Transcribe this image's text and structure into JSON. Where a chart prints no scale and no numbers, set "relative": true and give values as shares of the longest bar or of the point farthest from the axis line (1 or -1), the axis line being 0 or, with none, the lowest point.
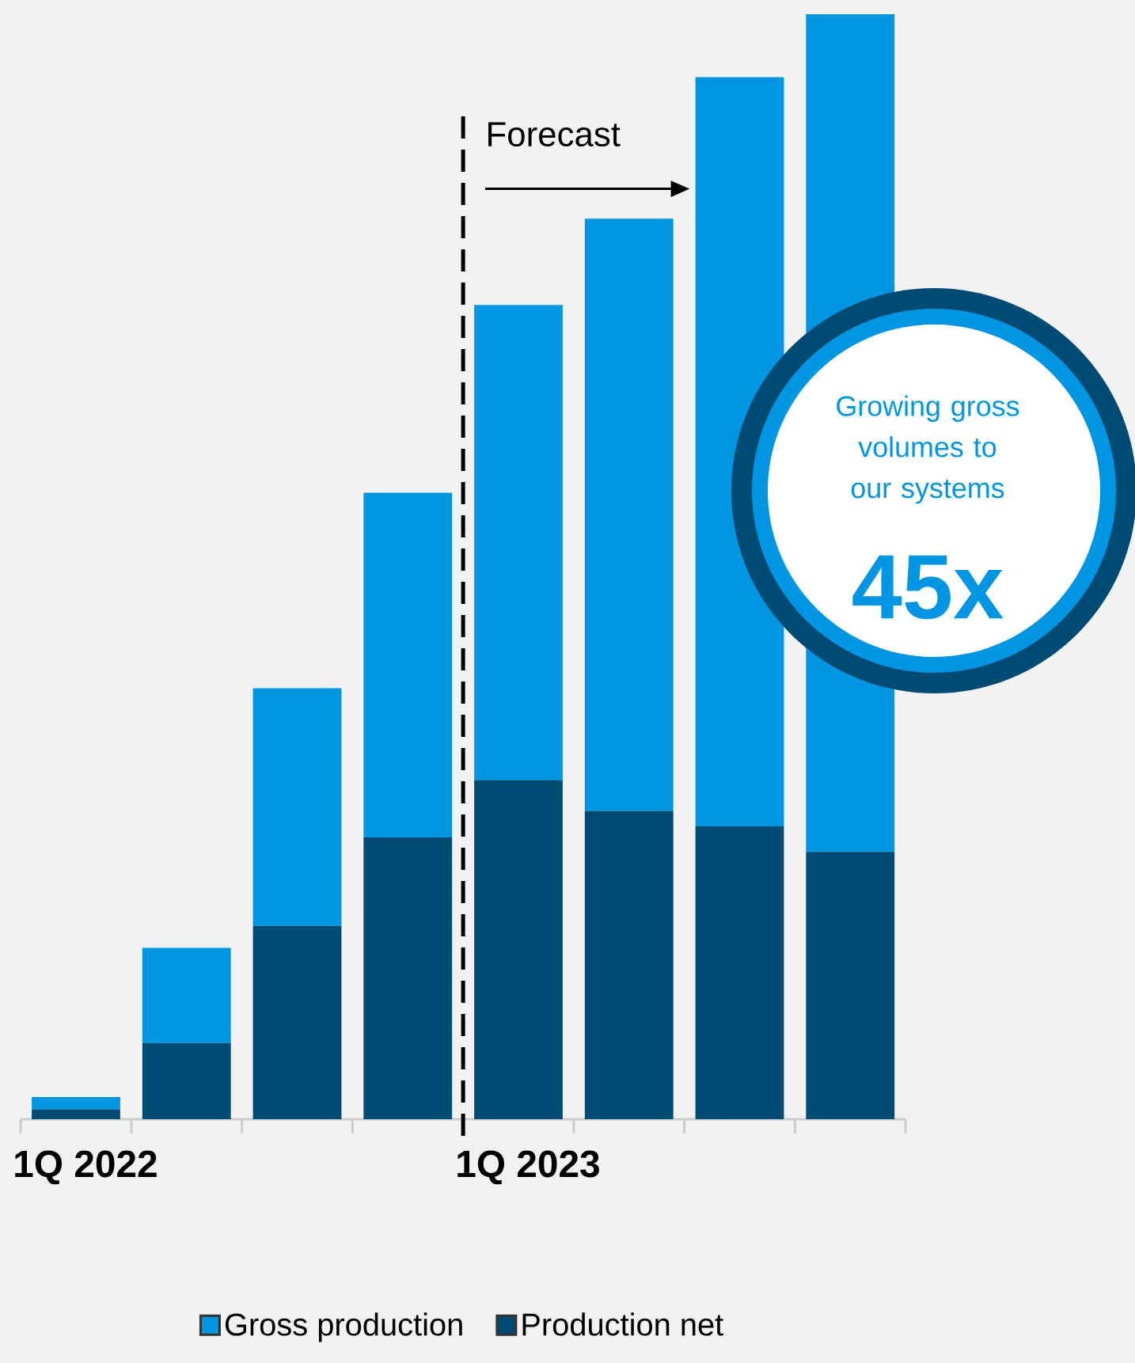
{
  "chart_data": {
    "type": "bar",
    "stacked": true,
    "relative": true,
    "categories": [
      "1Q 2022",
      null,
      null,
      null,
      "1Q 2023",
      null,
      null,
      null
    ],
    "series": [
      {
        "name": "Production net",
        "color": "#004b73",
        "values": [
          0.009,
          0.069,
          0.175,
          0.255,
          0.307,
          0.279,
          0.265,
          0.242
        ]
      },
      {
        "name": "Gross production",
        "color": "#0096e3",
        "values": [
          0.011,
          0.086,
          0.215,
          0.312,
          0.43,
          0.536,
          0.678,
          0.758
        ]
      }
    ],
    "annotations": [
      "Forecast",
      "Growing gross volumes to our systems",
      "45x"
    ],
    "legend": "bottom"
  }
}
